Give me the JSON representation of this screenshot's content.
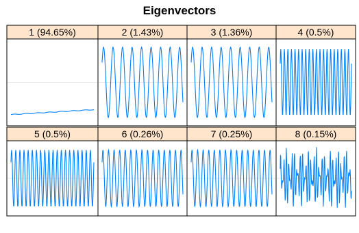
{
  "chart_data": {
    "type": "line",
    "title": "Eigenvectors",
    "grid": true,
    "layout": "2 rows x 4 columns of panels",
    "strip_color": "#FFE5CC",
    "line_color": "#0080FF",
    "gridline_color": "#E6E6E6",
    "panels": [
      {
        "label": "1 (94.65%)",
        "shape": "flat",
        "cycles": 0,
        "amplitude": 0.07,
        "level": -0.78,
        "trend": 0.12
      },
      {
        "label": "2 (1.43%)",
        "shape": "sine",
        "cycles": 8.5,
        "amplitude": 0.85,
        "level": 0.0,
        "trend": 0.0
      },
      {
        "label": "3 (1.36%)",
        "shape": "sine",
        "cycles": 8.5,
        "amplitude": 0.85,
        "level": 0.0,
        "trend": 0.0
      },
      {
        "label": "4 (0.5%)",
        "shape": "sine",
        "cycles": 20,
        "amplitude": 0.8,
        "level": 0.0,
        "trend": 0.0
      },
      {
        "label": "5 (0.5%)",
        "shape": "sine",
        "cycles": 20,
        "amplitude": 0.8,
        "level": 0.0,
        "trend": 0.0
      },
      {
        "label": "6 (0.26%)",
        "shape": "sine",
        "cycles": 14.5,
        "amplitude": 0.8,
        "level": 0.0,
        "trend": 0.0
      },
      {
        "label": "7 (0.25%)",
        "shape": "sine",
        "cycles": 14.5,
        "amplitude": 0.8,
        "level": 0.0,
        "trend": 0.0
      },
      {
        "label": "8 (0.15%)",
        "shape": "noisy",
        "cycles": 26,
        "amplitude": 0.85,
        "level": 0.0,
        "trend": 0.0
      }
    ]
  }
}
